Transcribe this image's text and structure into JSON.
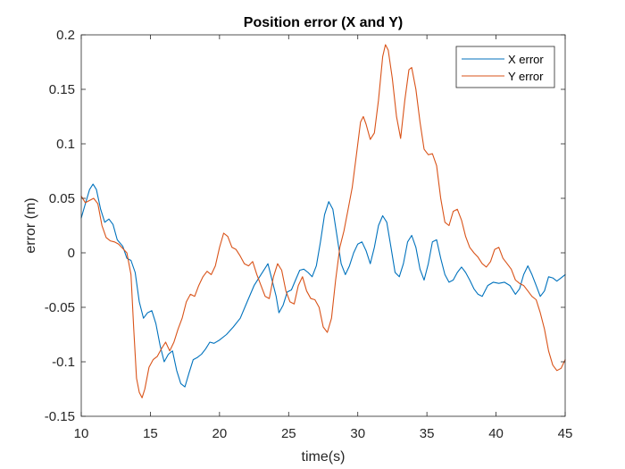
{
  "chart_data": {
    "type": "line",
    "title": "Position error (X and Y)",
    "xlabel": "time(s)",
    "ylabel": "error (m)",
    "xlim": [
      10,
      45
    ],
    "ylim": [
      -0.15,
      0.2
    ],
    "xticks": [
      10,
      15,
      20,
      25,
      30,
      35,
      40,
      45
    ],
    "xtick_labels": [
      "10",
      "15",
      "20",
      "25",
      "30",
      "35",
      "40",
      "45"
    ],
    "yticks": [
      -0.15,
      -0.1,
      -0.05,
      0,
      0.05,
      0.1,
      0.15,
      0.2
    ],
    "ytick_labels": [
      "-0.15",
      "-0.1",
      "-0.05",
      "0",
      "0.05",
      "0.1",
      "0.15",
      "0.2"
    ],
    "grid": false,
    "legend_position": "top-right",
    "series": [
      {
        "name": "X error",
        "color": "#0072BD",
        "points": [
          [
            10.0,
            0.032
          ],
          [
            10.3,
            0.045
          ],
          [
            10.6,
            0.058
          ],
          [
            10.85,
            0.063
          ],
          [
            11.1,
            0.058
          ],
          [
            11.4,
            0.04
          ],
          [
            11.7,
            0.028
          ],
          [
            12.0,
            0.031
          ],
          [
            12.3,
            0.026
          ],
          [
            12.6,
            0.012
          ],
          [
            13.0,
            0.006
          ],
          [
            13.3,
            -0.005
          ],
          [
            13.6,
            -0.007
          ],
          [
            13.9,
            -0.018
          ],
          [
            14.2,
            -0.045
          ],
          [
            14.5,
            -0.06
          ],
          [
            14.8,
            -0.055
          ],
          [
            15.1,
            -0.053
          ],
          [
            15.4,
            -0.065
          ],
          [
            15.7,
            -0.085
          ],
          [
            16.0,
            -0.1
          ],
          [
            16.3,
            -0.093
          ],
          [
            16.6,
            -0.09
          ],
          [
            16.9,
            -0.108
          ],
          [
            17.2,
            -0.12
          ],
          [
            17.5,
            -0.123
          ],
          [
            17.8,
            -0.11
          ],
          [
            18.1,
            -0.098
          ],
          [
            18.4,
            -0.096
          ],
          [
            18.7,
            -0.093
          ],
          [
            19.0,
            -0.088
          ],
          [
            19.3,
            -0.082
          ],
          [
            19.6,
            -0.083
          ],
          [
            20.0,
            -0.08
          ],
          [
            20.5,
            -0.075
          ],
          [
            21.0,
            -0.068
          ],
          [
            21.5,
            -0.06
          ],
          [
            22.0,
            -0.045
          ],
          [
            22.5,
            -0.03
          ],
          [
            23.0,
            -0.02
          ],
          [
            23.5,
            -0.01
          ],
          [
            23.8,
            -0.025
          ],
          [
            24.1,
            -0.04
          ],
          [
            24.3,
            -0.055
          ],
          [
            24.6,
            -0.048
          ],
          [
            24.9,
            -0.036
          ],
          [
            25.2,
            -0.034
          ],
          [
            25.5,
            -0.025
          ],
          [
            25.8,
            -0.016
          ],
          [
            26.1,
            -0.015
          ],
          [
            26.4,
            -0.018
          ],
          [
            26.7,
            -0.022
          ],
          [
            27.0,
            -0.012
          ],
          [
            27.3,
            0.01
          ],
          [
            27.6,
            0.035
          ],
          [
            27.9,
            0.047
          ],
          [
            28.2,
            0.04
          ],
          [
            28.5,
            0.015
          ],
          [
            28.8,
            -0.01
          ],
          [
            29.1,
            -0.02
          ],
          [
            29.4,
            -0.012
          ],
          [
            29.7,
            0.0
          ],
          [
            30.0,
            0.008
          ],
          [
            30.3,
            0.01
          ],
          [
            30.6,
            0.002
          ],
          [
            30.9,
            -0.01
          ],
          [
            31.2,
            0.005
          ],
          [
            31.5,
            0.025
          ],
          [
            31.8,
            0.034
          ],
          [
            32.1,
            0.028
          ],
          [
            32.4,
            0.005
          ],
          [
            32.7,
            -0.018
          ],
          [
            33.0,
            -0.022
          ],
          [
            33.3,
            -0.01
          ],
          [
            33.6,
            0.01
          ],
          [
            33.9,
            0.016
          ],
          [
            34.2,
            0.005
          ],
          [
            34.5,
            -0.015
          ],
          [
            34.8,
            -0.025
          ],
          [
            35.1,
            -0.01
          ],
          [
            35.4,
            0.01
          ],
          [
            35.7,
            0.012
          ],
          [
            36.0,
            -0.005
          ],
          [
            36.3,
            -0.02
          ],
          [
            36.6,
            -0.027
          ],
          [
            36.9,
            -0.025
          ],
          [
            37.2,
            -0.018
          ],
          [
            37.5,
            -0.013
          ],
          [
            37.8,
            -0.018
          ],
          [
            38.1,
            -0.025
          ],
          [
            38.4,
            -0.033
          ],
          [
            38.7,
            -0.038
          ],
          [
            39.0,
            -0.04
          ],
          [
            39.4,
            -0.03
          ],
          [
            39.8,
            -0.027
          ],
          [
            40.2,
            -0.028
          ],
          [
            40.6,
            -0.027
          ],
          [
            41.0,
            -0.03
          ],
          [
            41.4,
            -0.038
          ],
          [
            41.7,
            -0.033
          ],
          [
            42.0,
            -0.02
          ],
          [
            42.3,
            -0.012
          ],
          [
            42.6,
            -0.02
          ],
          [
            42.9,
            -0.03
          ],
          [
            43.2,
            -0.04
          ],
          [
            43.5,
            -0.035
          ],
          [
            43.8,
            -0.022
          ],
          [
            44.1,
            -0.023
          ],
          [
            44.4,
            -0.026
          ],
          [
            44.7,
            -0.023
          ],
          [
            45.0,
            -0.02
          ]
        ]
      },
      {
        "name": "Y error",
        "color": "#D95319",
        "points": [
          [
            10.0,
            0.052
          ],
          [
            10.3,
            0.046
          ],
          [
            10.6,
            0.048
          ],
          [
            10.9,
            0.05
          ],
          [
            11.2,
            0.045
          ],
          [
            11.5,
            0.025
          ],
          [
            11.8,
            0.014
          ],
          [
            12.1,
            0.011
          ],
          [
            12.4,
            0.01
          ],
          [
            12.7,
            0.008
          ],
          [
            13.0,
            0.004
          ],
          [
            13.3,
            0.0
          ],
          [
            13.6,
            -0.02
          ],
          [
            13.8,
            -0.07
          ],
          [
            14.0,
            -0.115
          ],
          [
            14.2,
            -0.128
          ],
          [
            14.4,
            -0.133
          ],
          [
            14.6,
            -0.125
          ],
          [
            14.9,
            -0.105
          ],
          [
            15.2,
            -0.098
          ],
          [
            15.5,
            -0.095
          ],
          [
            15.8,
            -0.088
          ],
          [
            16.1,
            -0.082
          ],
          [
            16.4,
            -0.09
          ],
          [
            16.7,
            -0.082
          ],
          [
            17.0,
            -0.07
          ],
          [
            17.3,
            -0.06
          ],
          [
            17.6,
            -0.045
          ],
          [
            17.9,
            -0.038
          ],
          [
            18.2,
            -0.04
          ],
          [
            18.5,
            -0.03
          ],
          [
            18.8,
            -0.022
          ],
          [
            19.1,
            -0.017
          ],
          [
            19.4,
            -0.02
          ],
          [
            19.7,
            -0.012
          ],
          [
            20.0,
            0.005
          ],
          [
            20.3,
            0.018
          ],
          [
            20.6,
            0.015
          ],
          [
            20.9,
            0.005
          ],
          [
            21.2,
            0.003
          ],
          [
            21.5,
            -0.003
          ],
          [
            21.8,
            -0.01
          ],
          [
            22.1,
            -0.012
          ],
          [
            22.4,
            -0.008
          ],
          [
            22.7,
            -0.02
          ],
          [
            23.0,
            -0.03
          ],
          [
            23.3,
            -0.04
          ],
          [
            23.6,
            -0.042
          ],
          [
            23.9,
            -0.022
          ],
          [
            24.2,
            -0.01
          ],
          [
            24.5,
            -0.016
          ],
          [
            24.8,
            -0.035
          ],
          [
            25.1,
            -0.045
          ],
          [
            25.4,
            -0.047
          ],
          [
            25.7,
            -0.03
          ],
          [
            26.0,
            -0.022
          ],
          [
            26.3,
            -0.035
          ],
          [
            26.6,
            -0.042
          ],
          [
            26.9,
            -0.043
          ],
          [
            27.2,
            -0.05
          ],
          [
            27.5,
            -0.068
          ],
          [
            27.8,
            -0.073
          ],
          [
            28.1,
            -0.06
          ],
          [
            28.4,
            -0.025
          ],
          [
            28.7,
            0.005
          ],
          [
            29.0,
            0.02
          ],
          [
            29.3,
            0.04
          ],
          [
            29.6,
            0.06
          ],
          [
            29.9,
            0.09
          ],
          [
            30.2,
            0.12
          ],
          [
            30.4,
            0.125
          ],
          [
            30.6,
            0.118
          ],
          [
            30.9,
            0.104
          ],
          [
            31.2,
            0.11
          ],
          [
            31.5,
            0.14
          ],
          [
            31.8,
            0.18
          ],
          [
            32.0,
            0.191
          ],
          [
            32.2,
            0.186
          ],
          [
            32.5,
            0.16
          ],
          [
            32.8,
            0.125
          ],
          [
            33.1,
            0.105
          ],
          [
            33.4,
            0.14
          ],
          [
            33.7,
            0.168
          ],
          [
            33.9,
            0.17
          ],
          [
            34.2,
            0.15
          ],
          [
            34.5,
            0.12
          ],
          [
            34.8,
            0.095
          ],
          [
            35.1,
            0.09
          ],
          [
            35.4,
            0.091
          ],
          [
            35.7,
            0.08
          ],
          [
            36.0,
            0.05
          ],
          [
            36.3,
            0.028
          ],
          [
            36.6,
            0.025
          ],
          [
            36.9,
            0.038
          ],
          [
            37.2,
            0.04
          ],
          [
            37.5,
            0.03
          ],
          [
            37.8,
            0.015
          ],
          [
            38.1,
            0.005
          ],
          [
            38.4,
            0.0
          ],
          [
            38.7,
            -0.004
          ],
          [
            39.0,
            -0.01
          ],
          [
            39.3,
            -0.013
          ],
          [
            39.6,
            -0.008
          ],
          [
            39.9,
            0.003
          ],
          [
            40.2,
            0.005
          ],
          [
            40.5,
            -0.005
          ],
          [
            40.8,
            -0.01
          ],
          [
            41.1,
            -0.015
          ],
          [
            41.4,
            -0.025
          ],
          [
            41.7,
            -0.028
          ],
          [
            42.0,
            -0.03
          ],
          [
            42.3,
            -0.035
          ],
          [
            42.6,
            -0.04
          ],
          [
            42.9,
            -0.043
          ],
          [
            43.2,
            -0.055
          ],
          [
            43.5,
            -0.07
          ],
          [
            43.8,
            -0.09
          ],
          [
            44.1,
            -0.103
          ],
          [
            44.4,
            -0.108
          ],
          [
            44.7,
            -0.106
          ],
          [
            45.0,
            -0.098
          ]
        ]
      }
    ]
  }
}
